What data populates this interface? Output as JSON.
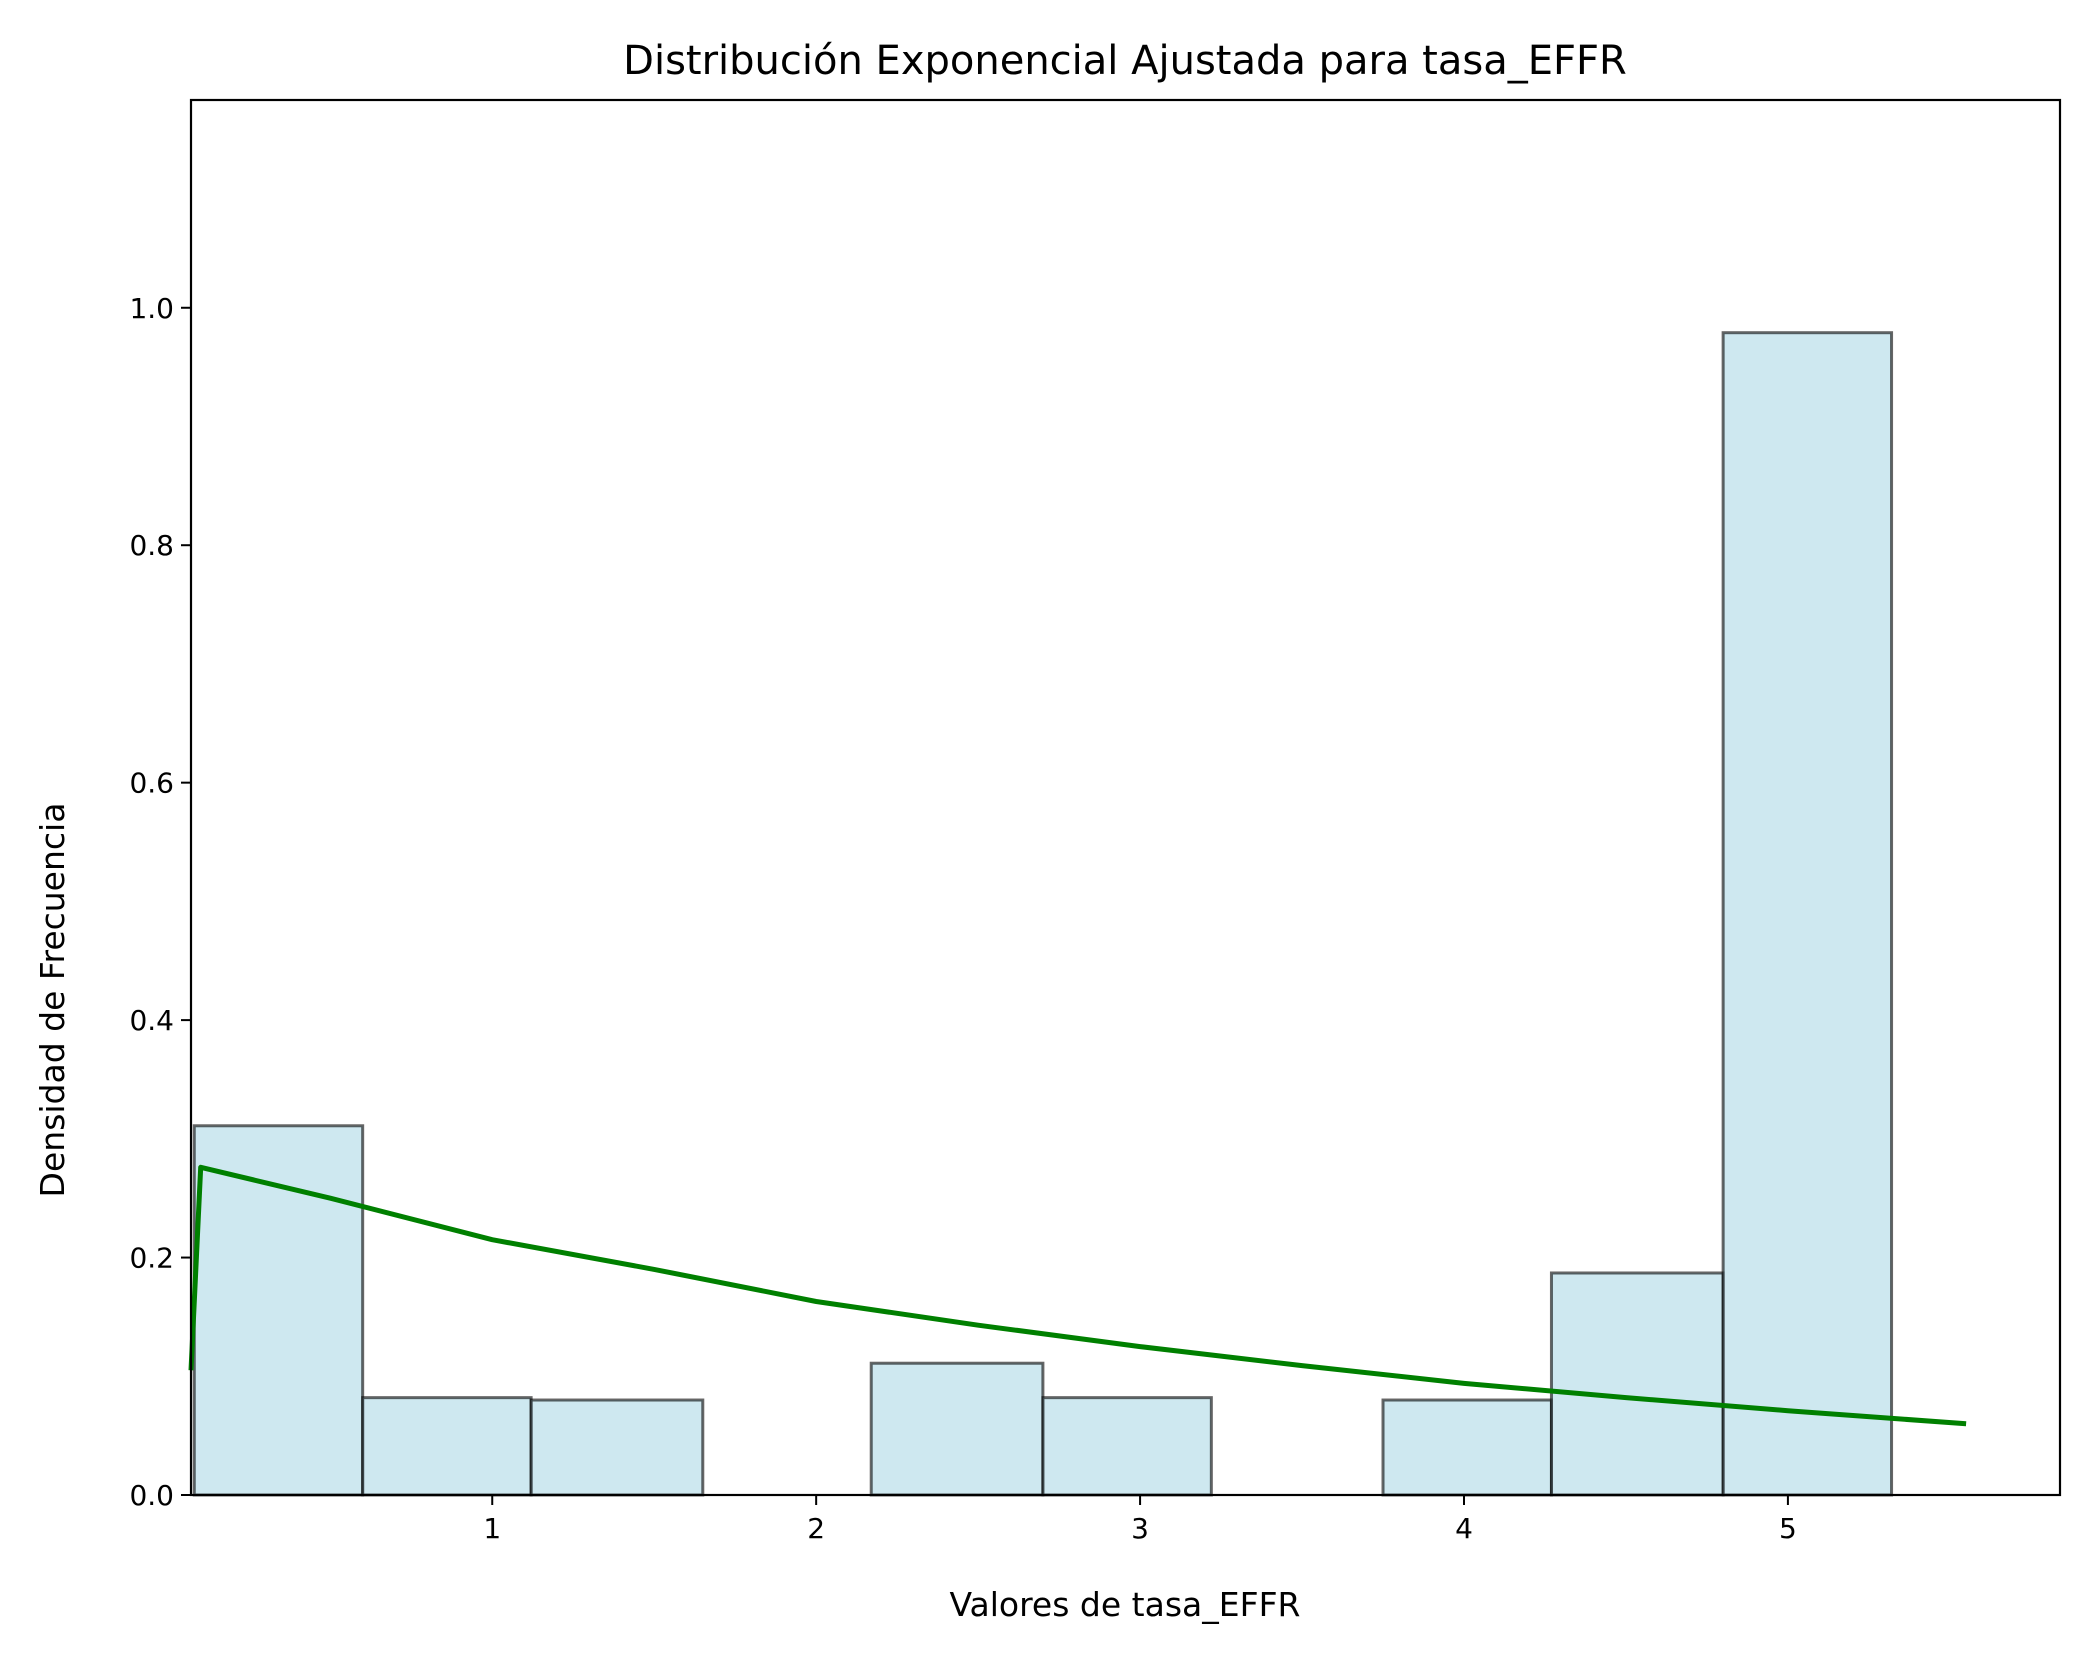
{
  "chart_data": {
    "type": "bar",
    "title": "Distribución Exponencial Ajustada para tasa_EFFR",
    "xlabel": "Valores de tasa_EFFR",
    "ylabel": "Densidad de Frecuencia",
    "xlim": [
      0.07,
      5.84
    ],
    "ylim": [
      0.0,
      1.175
    ],
    "grid": false,
    "xticks": [
      {
        "value": 1,
        "label": "1"
      },
      {
        "value": 2,
        "label": "2"
      },
      {
        "value": 3,
        "label": "3"
      },
      {
        "value": 4,
        "label": "4"
      },
      {
        "value": 5,
        "label": "5"
      }
    ],
    "yticks": [
      {
        "value": 0.0,
        "label": "0.0"
      },
      {
        "value": 0.2,
        "label": "0.2"
      },
      {
        "value": 0.4,
        "label": "0.4"
      },
      {
        "value": 0.6,
        "label": "0.6"
      },
      {
        "value": 0.8,
        "label": "0.8"
      },
      {
        "value": 1.0,
        "label": "1.0"
      }
    ],
    "bins": [
      {
        "x0": 0.08,
        "x1": 0.6,
        "value": 0.311
      },
      {
        "x0": 0.6,
        "x1": 1.12,
        "value": 0.082
      },
      {
        "x0": 1.12,
        "x1": 1.65,
        "value": 0.08
      },
      {
        "x0": 1.65,
        "x1": 2.17,
        "value": 0.0
      },
      {
        "x0": 2.17,
        "x1": 2.7,
        "value": 0.111
      },
      {
        "x0": 2.7,
        "x1": 3.22,
        "value": 0.082
      },
      {
        "x0": 3.22,
        "x1": 3.75,
        "value": 0.0
      },
      {
        "x0": 3.75,
        "x1": 4.27,
        "value": 0.08
      },
      {
        "x0": 4.27,
        "x1": 4.8,
        "value": 0.187
      },
      {
        "x0": 4.8,
        "x1": 5.32,
        "value": 0.979
      }
    ],
    "fit_line": {
      "type": "line",
      "points": [
        [
          0.07,
          0.105
        ],
        [
          0.1,
          0.276
        ],
        [
          0.5,
          0.25
        ],
        [
          1.0,
          0.215
        ],
        [
          1.5,
          0.19
        ],
        [
          2.0,
          0.163
        ],
        [
          2.5,
          0.143
        ],
        [
          3.0,
          0.125
        ],
        [
          3.5,
          0.109
        ],
        [
          4.0,
          0.094
        ],
        [
          4.5,
          0.082
        ],
        [
          5.0,
          0.071
        ],
        [
          5.55,
          0.06
        ]
      ]
    },
    "colors": {
      "bar_fill": "#add8e6",
      "bar_edge": "#000000",
      "line": "#008000",
      "axis": "#000000"
    }
  }
}
